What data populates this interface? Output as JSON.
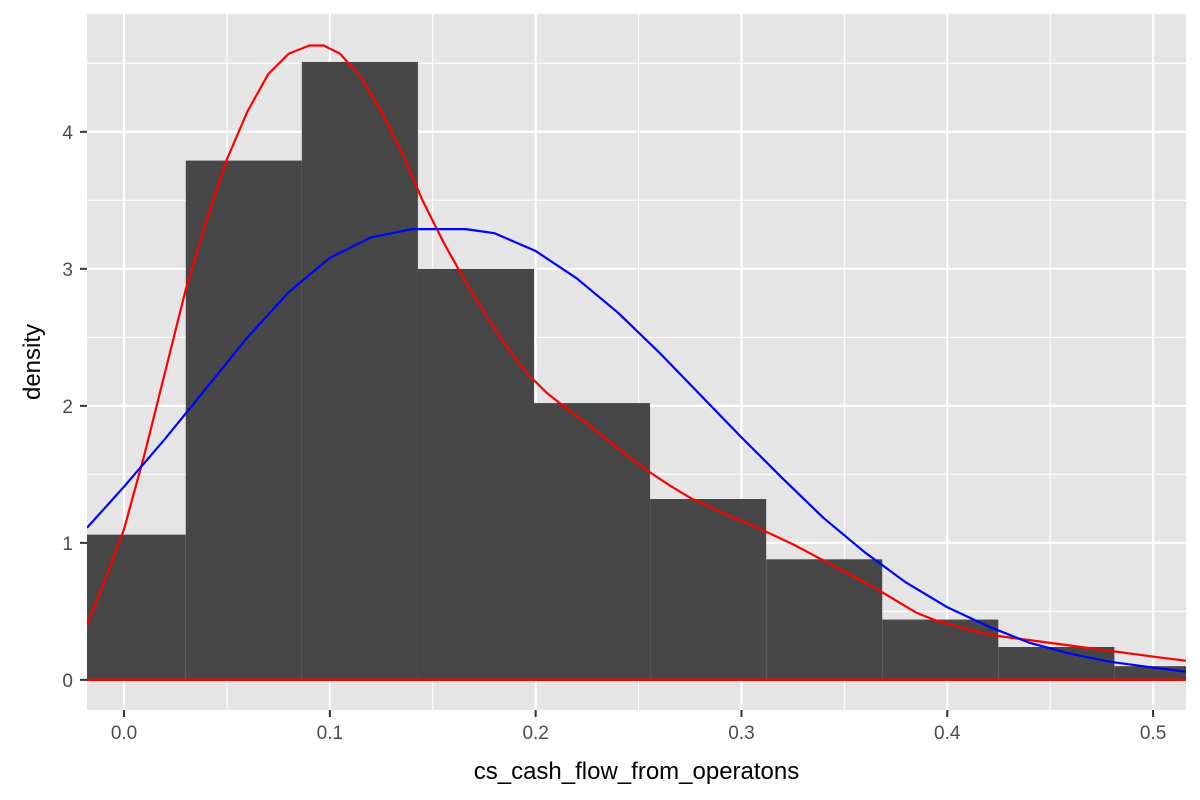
{
  "chart_data": {
    "type": "histogram",
    "title": "",
    "xlabel": "cs_cash_flow_from_operatons",
    "ylabel": "density",
    "xlim": [
      -0.018,
      0.516
    ],
    "ylim": [
      -0.22,
      4.86
    ],
    "x_ticks": [
      0.0,
      0.1,
      0.2,
      0.3,
      0.4,
      0.5
    ],
    "x_tick_labels": [
      "0.0",
      "0.1",
      "0.2",
      "0.3",
      "0.4",
      "0.5"
    ],
    "y_ticks": [
      0,
      1,
      2,
      3,
      4
    ],
    "y_tick_labels": [
      "0",
      "1",
      "2",
      "3",
      "4"
    ],
    "grid": true,
    "colors": {
      "panel": "#e5e5e5",
      "grid": "#ffffff",
      "bar": "#474747",
      "kde": "#ff0000",
      "normal": "#0000ff"
    },
    "bins": [
      {
        "x0": -0.0264,
        "x1": 0.03,
        "density": 1.06
      },
      {
        "x0": 0.03,
        "x1": 0.0864,
        "density": 3.79
      },
      {
        "x0": 0.0864,
        "x1": 0.1428,
        "density": 4.51
      },
      {
        "x0": 0.1428,
        "x1": 0.1992,
        "density": 3.0
      },
      {
        "x0": 0.1992,
        "x1": 0.2556,
        "density": 2.02
      },
      {
        "x0": 0.2556,
        "x1": 0.312,
        "density": 1.32
      },
      {
        "x0": 0.312,
        "x1": 0.3684,
        "density": 0.88
      },
      {
        "x0": 0.3684,
        "x1": 0.4248,
        "density": 0.44
      },
      {
        "x0": 0.4248,
        "x1": 0.4812,
        "density": 0.24
      },
      {
        "x0": 0.4812,
        "x1": 0.5376,
        "density": 0.1
      }
    ],
    "series": [
      {
        "kind": "kernel-density",
        "color": "#ff0000",
        "x": [
          -0.018,
          -0.01,
          0.0,
          0.01,
          0.02,
          0.03,
          0.04,
          0.05,
          0.06,
          0.07,
          0.08,
          0.09,
          0.097,
          0.105,
          0.115,
          0.125,
          0.135,
          0.145,
          0.155,
          0.165,
          0.175,
          0.185,
          0.195,
          0.205,
          0.215,
          0.225,
          0.235,
          0.245,
          0.255,
          0.265,
          0.275,
          0.285,
          0.295,
          0.305,
          0.315,
          0.325,
          0.335,
          0.345,
          0.355,
          0.365,
          0.375,
          0.385,
          0.395,
          0.405,
          0.415,
          0.425,
          0.435,
          0.445,
          0.455,
          0.465,
          0.475,
          0.485,
          0.495,
          0.505,
          0.516
        ],
        "y": [
          0.4,
          0.7,
          1.1,
          1.65,
          2.25,
          2.85,
          3.35,
          3.8,
          4.15,
          4.42,
          4.57,
          4.63,
          4.63,
          4.57,
          4.4,
          4.15,
          3.85,
          3.5,
          3.2,
          2.93,
          2.68,
          2.45,
          2.25,
          2.1,
          1.98,
          1.87,
          1.75,
          1.63,
          1.52,
          1.42,
          1.33,
          1.26,
          1.19,
          1.13,
          1.06,
          0.99,
          0.91,
          0.83,
          0.75,
          0.67,
          0.58,
          0.49,
          0.43,
          0.39,
          0.35,
          0.32,
          0.3,
          0.28,
          0.26,
          0.24,
          0.22,
          0.2,
          0.18,
          0.16,
          0.14
        ]
      },
      {
        "kind": "normal-fit",
        "color": "#0000ff",
        "x": [
          -0.018,
          0.0,
          0.02,
          0.04,
          0.06,
          0.08,
          0.1,
          0.12,
          0.14,
          0.16,
          0.166,
          0.18,
          0.2,
          0.22,
          0.24,
          0.26,
          0.28,
          0.3,
          0.32,
          0.34,
          0.36,
          0.38,
          0.4,
          0.42,
          0.44,
          0.46,
          0.48,
          0.5,
          0.516
        ],
        "y": [
          1.11,
          1.41,
          1.76,
          2.13,
          2.5,
          2.83,
          3.08,
          3.23,
          3.29,
          3.29,
          3.29,
          3.26,
          3.13,
          2.93,
          2.68,
          2.39,
          2.08,
          1.77,
          1.47,
          1.18,
          0.93,
          0.71,
          0.53,
          0.39,
          0.27,
          0.19,
          0.13,
          0.09,
          0.06
        ]
      }
    ]
  }
}
